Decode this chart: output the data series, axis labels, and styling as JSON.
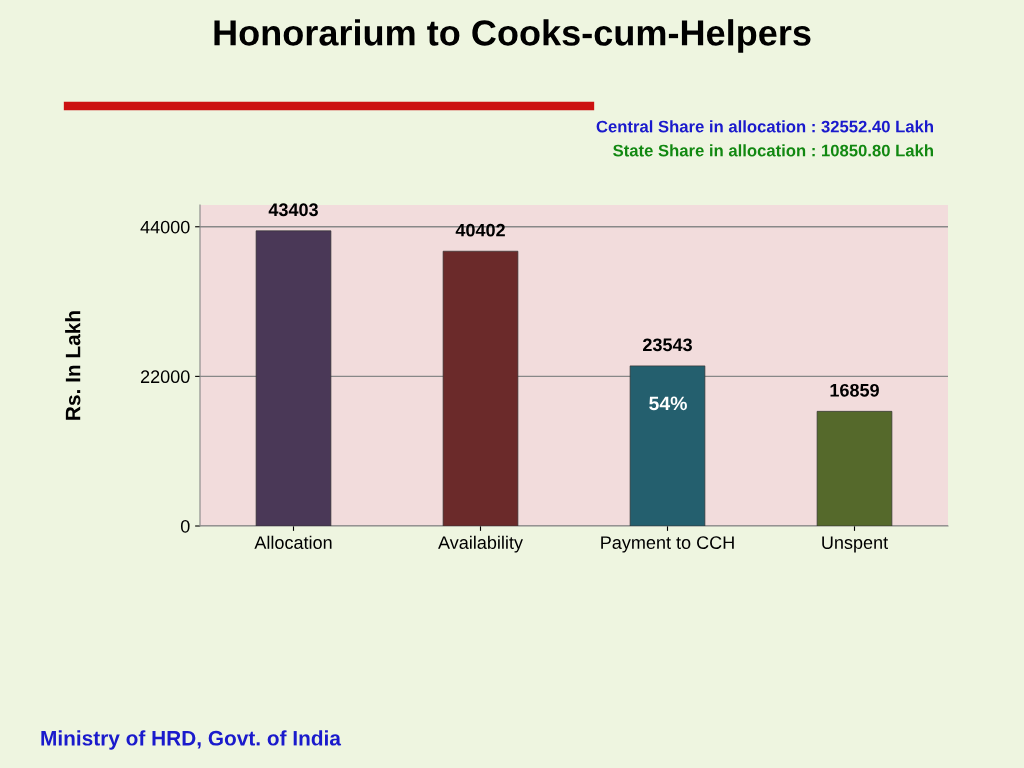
{
  "chart_data": {
    "type": "bar",
    "title": "Honorarium to Cooks-cum-Helpers",
    "ylabel": "Rs. In Lakh",
    "categories": [
      "Allocation",
      "Availability",
      "Payment to CCH",
      "Unspent"
    ],
    "values": [
      43403,
      40402,
      23543,
      16859
    ],
    "colors": [
      "#4a3857",
      "#6b2a2a",
      "#245f6e",
      "#55692b"
    ],
    "ylim": [
      0,
      47200
    ],
    "yticks": [
      0,
      22000,
      44000
    ],
    "grid": "y",
    "data_labels": true,
    "annotations": [
      "Central Share in allocation : 32552.40 Lakh",
      "State Share in allocation : 10850.80 Lakh",
      "54%",
      "Ministry of HRD, Govt. of India"
    ]
  }
}
